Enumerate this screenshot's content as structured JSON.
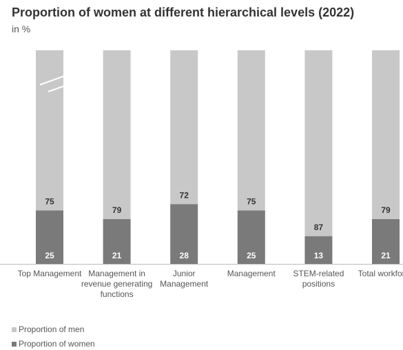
{
  "chart_data": {
    "type": "stacked_bar",
    "title": "Proportion of women at different hierarchical levels (2022)",
    "subtitle": "in %",
    "categories": [
      "Top Management",
      "Management in revenue generating functions",
      "Junior Management",
      "Management",
      "STEM-related positions",
      "Total workforce"
    ],
    "series": [
      {
        "name": "Proportion of women",
        "color": "#7a7a7a",
        "values": [
          25,
          21,
          28,
          25,
          13,
          21
        ]
      },
      {
        "name": "Proportion of men",
        "color": "#c8c8c8",
        "values": [
          75,
          79,
          72,
          75,
          87,
          79
        ]
      }
    ]
  }
}
